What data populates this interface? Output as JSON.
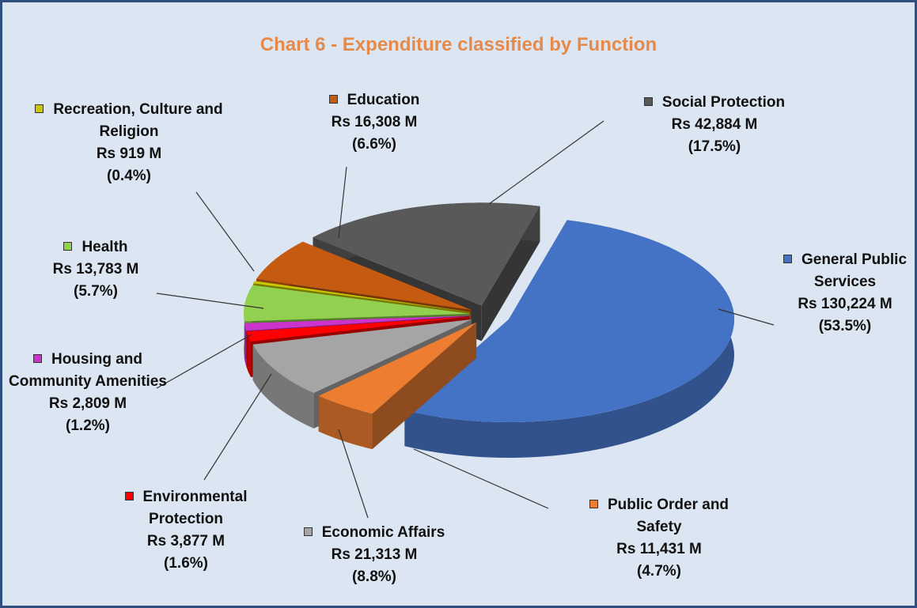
{
  "chart_data": {
    "type": "pie3d",
    "title": "Chart 6 - Expenditure classified by Function",
    "categories": [
      "General Public Services",
      "Public Order and Safety",
      "Economic Affairs",
      "Environmental Protection",
      "Housing and Community Amenities",
      "Health",
      "Recreation, Culture and Religion",
      "Education",
      "Social Protection"
    ],
    "values": [
      130224,
      11431,
      21313,
      3877,
      2809,
      13783,
      919,
      16308,
      42884
    ],
    "value_labels": [
      "Rs 130,224 M",
      "Rs 11,431 M",
      "Rs 21,313 M",
      "Rs 3,877 M",
      "Rs 2,809 M",
      "Rs 13,783 M",
      "Rs 919 M",
      "Rs 16,308 M",
      "Rs 42,884 M"
    ],
    "percents": [
      53.5,
      4.7,
      8.8,
      1.6,
      1.2,
      5.7,
      0.4,
      6.6,
      17.5
    ],
    "percent_labels": [
      "(53.5%)",
      "(4.7%)",
      "(8.8%)",
      "(1.6%)",
      "(1.2%)",
      "(5.7%)",
      "(0.4%)",
      "(6.6%)",
      "(17.5%)"
    ],
    "colors": [
      "#4472c4",
      "#ed7d31",
      "#a5a5a5",
      "#ff0000",
      "#cc33cc",
      "#92d050",
      "#c8c800",
      "#c55a11",
      "#595959"
    ]
  }
}
